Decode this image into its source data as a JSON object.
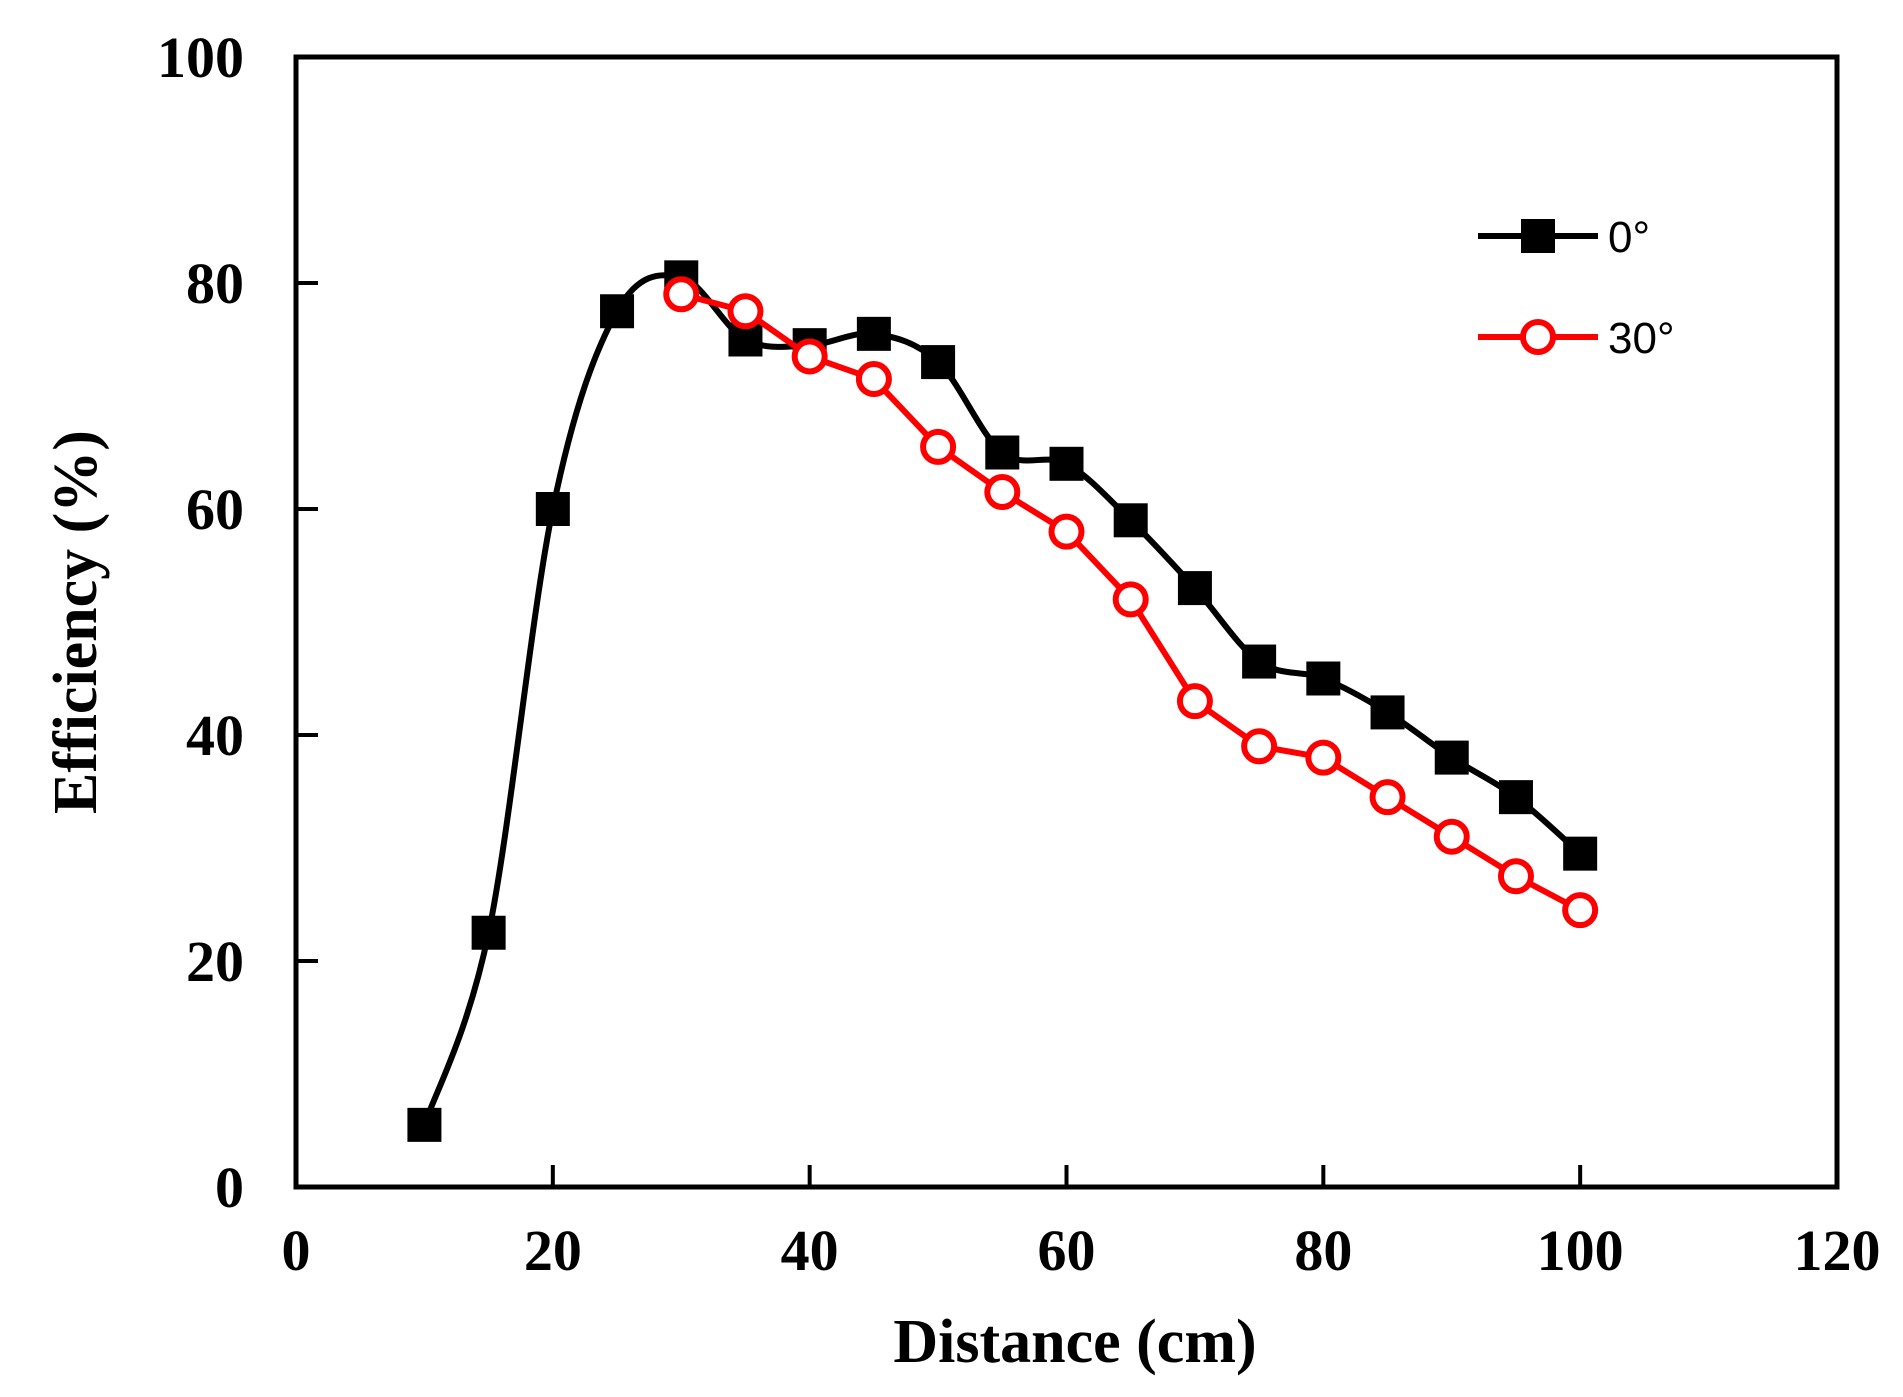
{
  "chart_data": {
    "type": "line",
    "title": "",
    "xlabel": "Distance (cm)",
    "ylabel": "Efficiency (%)",
    "xlim": [
      0,
      120
    ],
    "ylim": [
      0,
      100
    ],
    "xticks": [
      0,
      20,
      40,
      60,
      80,
      100,
      120
    ],
    "yticks": [
      0,
      20,
      40,
      60,
      80,
      100
    ],
    "grid": false,
    "legend_position": "top-right",
    "series": [
      {
        "name": "0°",
        "color": "#000000",
        "marker": "filled-square",
        "smooth": true,
        "x": [
          10,
          15,
          20,
          25,
          30,
          35,
          40,
          45,
          50,
          55,
          60,
          65,
          70,
          75,
          80,
          85,
          90,
          95,
          100
        ],
        "y": [
          5.5,
          22.5,
          60,
          77.5,
          80.5,
          75,
          74.5,
          75.5,
          73,
          65,
          64,
          59,
          53,
          46.5,
          45,
          42,
          38,
          34.5,
          29.5
        ]
      },
      {
        "name": "30°",
        "color": "#ff0000",
        "marker": "open-circle",
        "smooth": false,
        "x": [
          30,
          35,
          40,
          45,
          50,
          55,
          60,
          65,
          70,
          75,
          80,
          85,
          90,
          95,
          100
        ],
        "y": [
          79,
          77.5,
          73.5,
          71.5,
          65.5,
          61.5,
          58,
          52,
          43,
          39,
          38,
          34.5,
          31,
          27.5,
          24.5
        ]
      }
    ]
  }
}
